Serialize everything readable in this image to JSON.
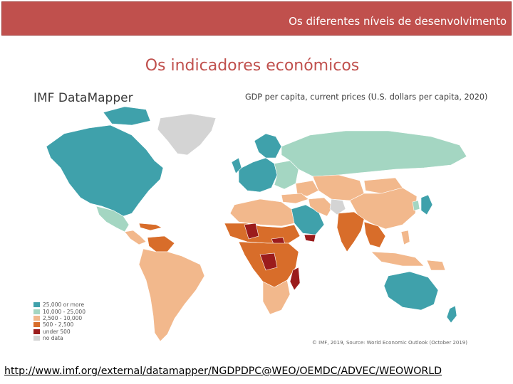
{
  "header": {
    "title": "Os diferentes níveis de desenvolvimento",
    "bar_color": "#c0504d"
  },
  "slide": {
    "title": "Os indicadores económicos"
  },
  "map": {
    "brand": "IMF DataMapper",
    "title": "GDP per capita, current prices (U.S. dollars per capita, 2020)",
    "source_note": "© IMF, 2019, Source: World Economic Outlook (October 2019)",
    "legend": [
      {
        "label": "25,000 or more",
        "color": "#3fa1ab"
      },
      {
        "label": "10,000 - 25,000",
        "color": "#a4d6c2"
      },
      {
        "label": "2,500 - 10,000",
        "color": "#f2b88c"
      },
      {
        "label": "500 - 2,500",
        "color": "#d86d2a"
      },
      {
        "label": "under 500",
        "color": "#9b1c1c"
      },
      {
        "label": "no data",
        "color": "#d4d4d4"
      }
    ]
  },
  "footer": {
    "link": "http://www.imf.org/external/datamapper/NGDPDPC@WEO/OEMDC/ADVEC/WEOWORLD"
  }
}
